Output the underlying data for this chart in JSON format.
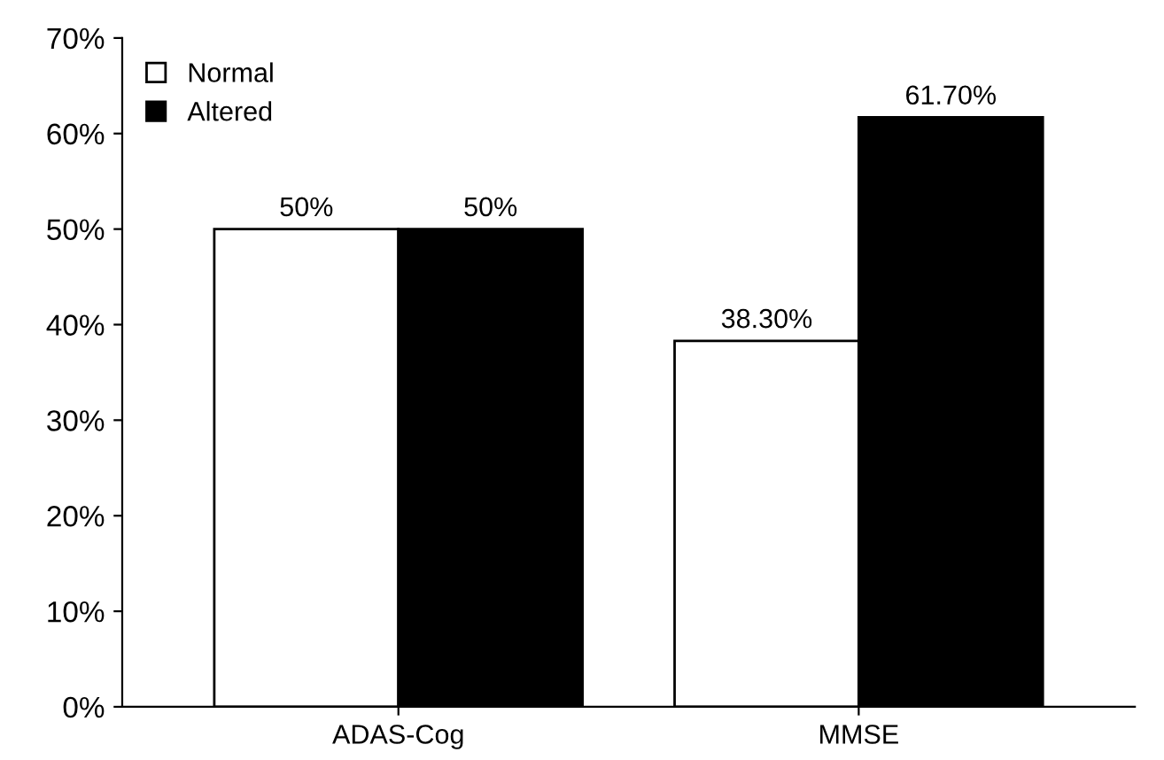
{
  "chart_data": {
    "type": "bar",
    "categories": [
      "ADAS-Cog",
      "MMSE"
    ],
    "series": [
      {
        "name": "Normal",
        "color": "#ffffff",
        "values": [
          50,
          38.3
        ],
        "value_labels": [
          "50%",
          "38.30%"
        ]
      },
      {
        "name": "Altered",
        "color": "#000000",
        "values": [
          50,
          61.7
        ],
        "value_labels": [
          "50%",
          "61.70%"
        ]
      }
    ],
    "ylim": [
      0,
      70
    ],
    "yticks": [
      {
        "value": 0,
        "label": "0%"
      },
      {
        "value": 10,
        "label": "10%"
      },
      {
        "value": 20,
        "label": "20%"
      },
      {
        "value": 30,
        "label": "30%"
      },
      {
        "value": 40,
        "label": "40%"
      },
      {
        "value": 50,
        "label": "50%"
      },
      {
        "value": 60,
        "label": "60%"
      },
      {
        "value": 70,
        "label": "70%"
      }
    ],
    "grid": false,
    "legend": "top left"
  }
}
